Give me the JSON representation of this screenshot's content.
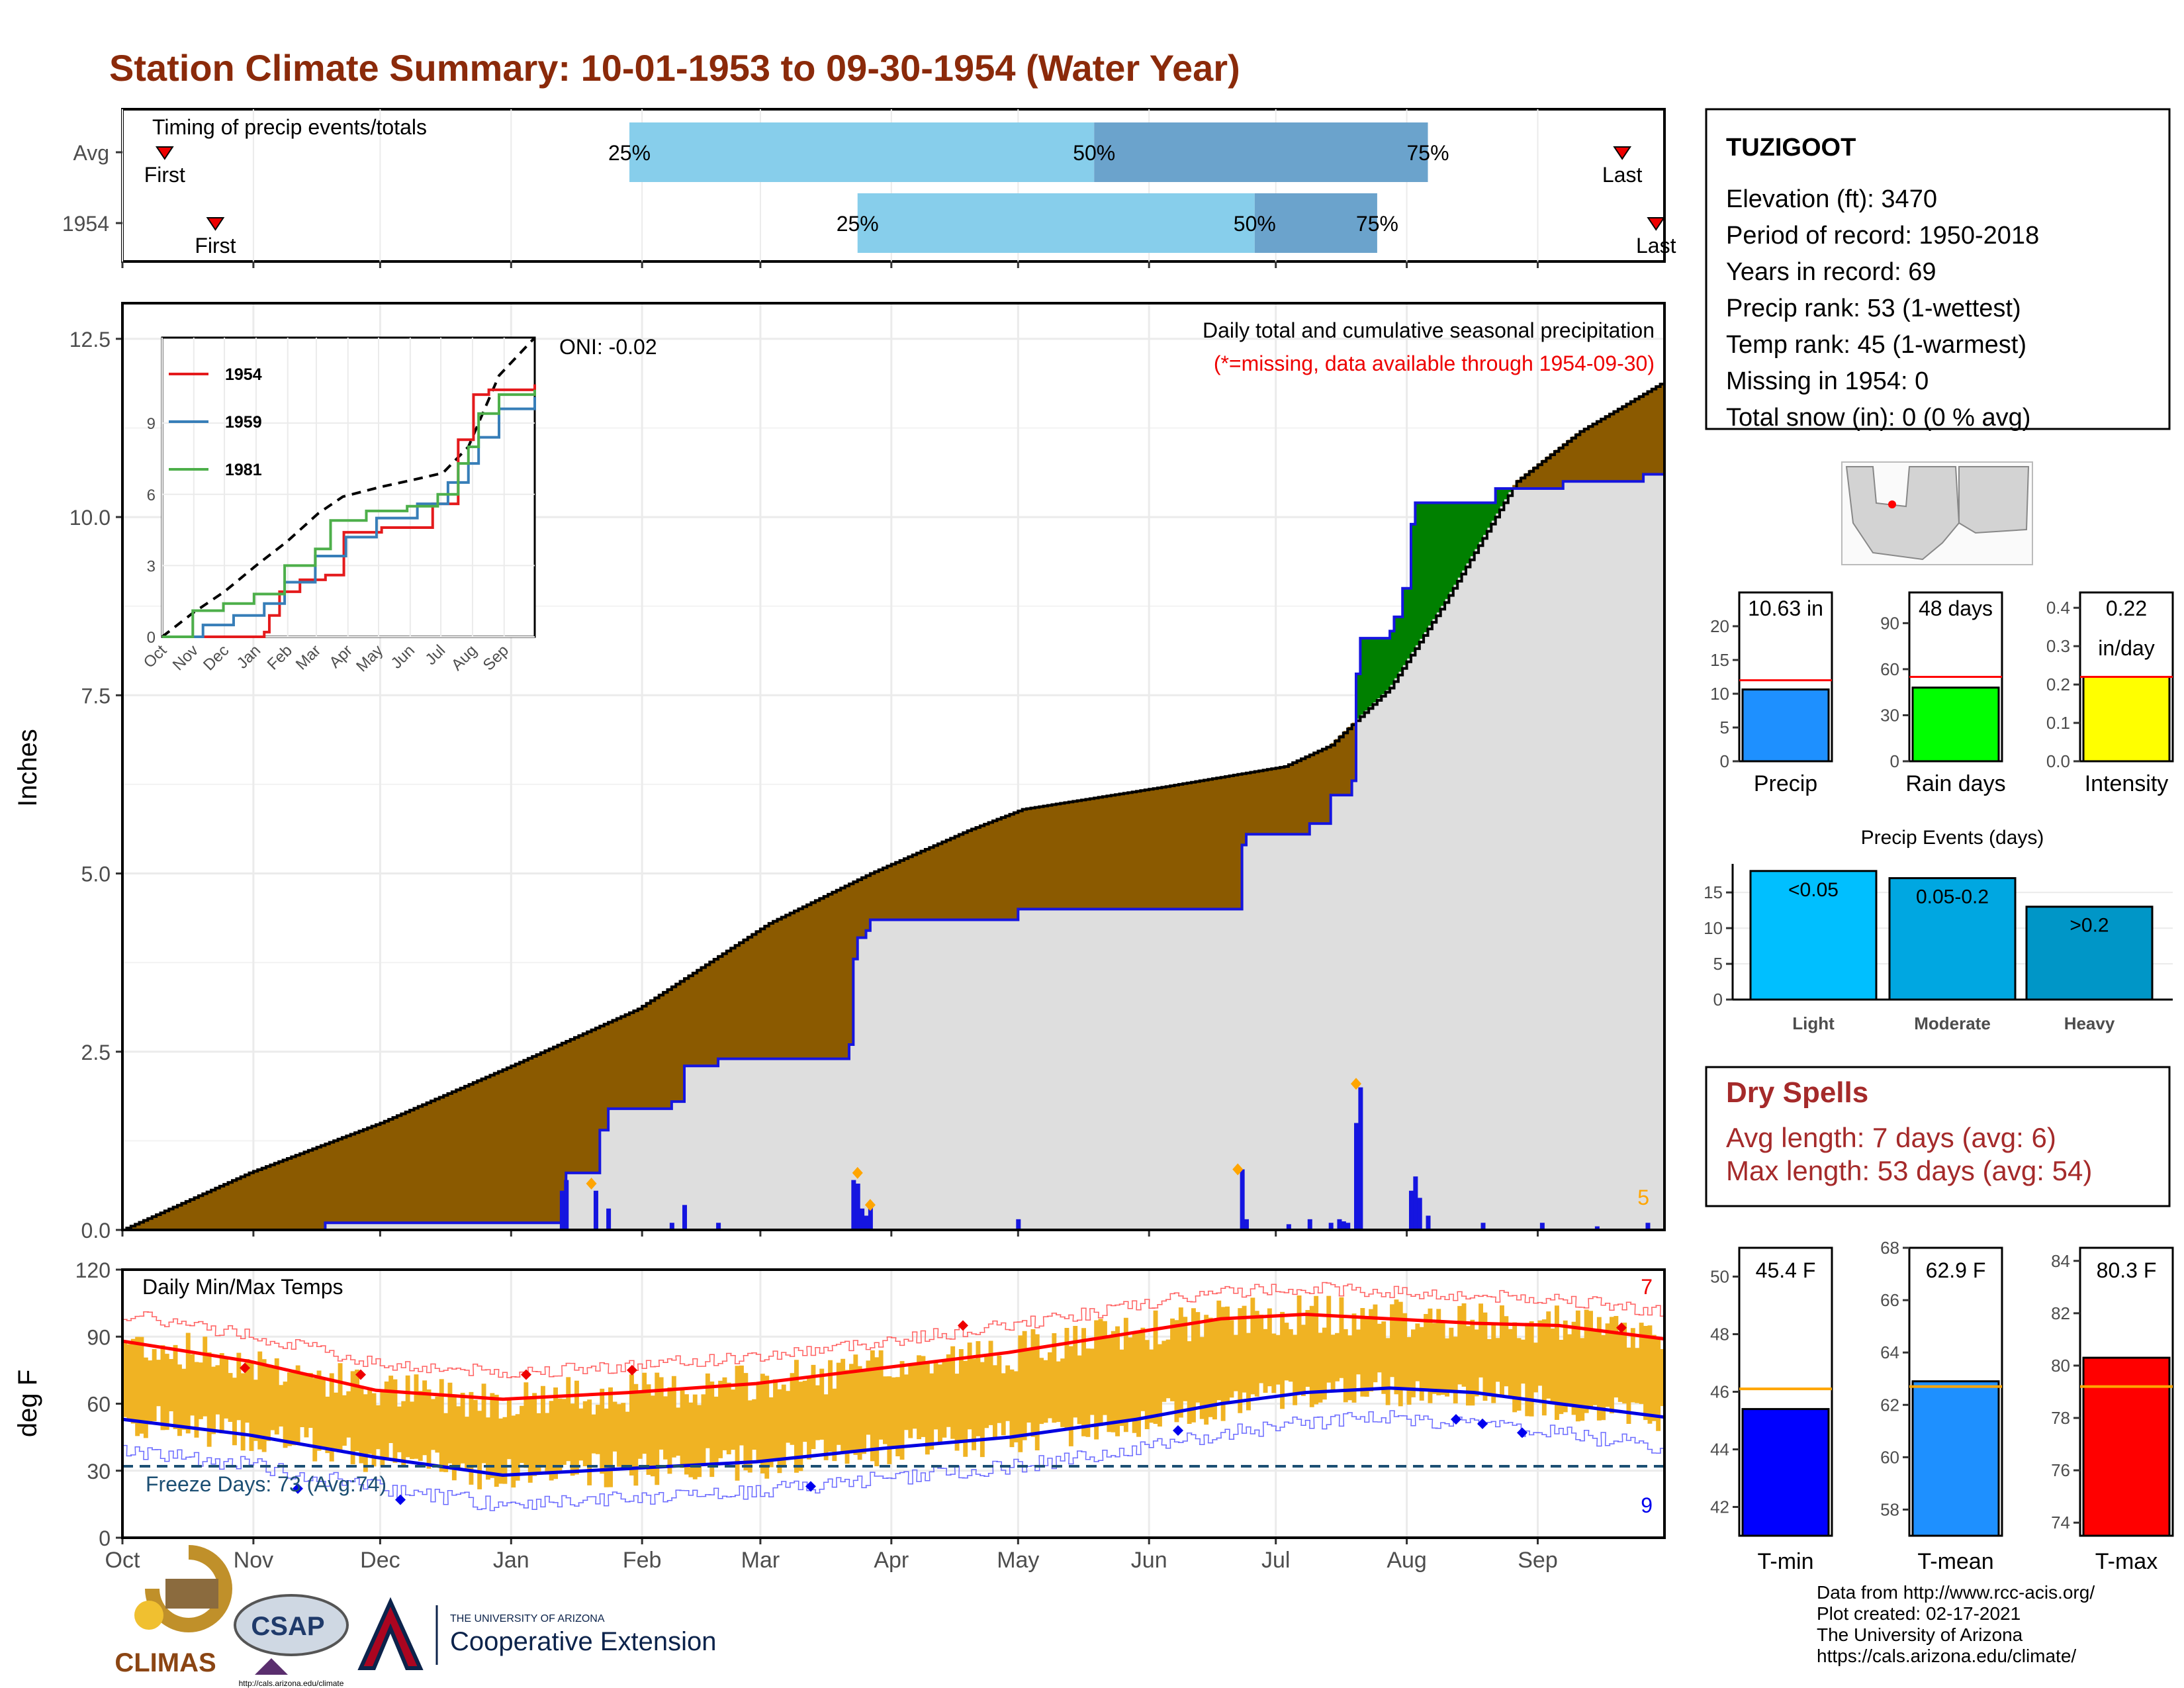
{
  "title": "Station Climate Summary: 10-01-1953 to 09-30-1954 (Water Year)",
  "timing": {
    "label": "Timing of precip events/totals",
    "rows": [
      {
        "name": "Avg",
        "first": "First",
        "last": "Last",
        "p25": "25%",
        "p50": "50%",
        "p75": "75%",
        "first_day": 10,
        "q25_day": 120,
        "q50_day": 230,
        "q75_day": 309,
        "last_day": 355
      },
      {
        "name": "1954",
        "first": "First",
        "last": "Last",
        "p25": "25%",
        "p50": "50%",
        "p75": "75%",
        "first_day": 22,
        "q25_day": 174,
        "q50_day": 268,
        "q75_day": 297,
        "last_day": 363
      }
    ]
  },
  "precip_panel": {
    "title": "Daily total and cumulative seasonal precipitation",
    "note": "(*=missing, data available through 1954-09-30)",
    "ylabel": "Inches",
    "yticks": [
      "0.0",
      "2.5",
      "5.0",
      "7.5",
      "10.0",
      "12.5"
    ],
    "oni": "ONI: -0.02",
    "max_label": "5",
    "avg_cum": [
      [
        0,
        0
      ],
      [
        30,
        0.8
      ],
      [
        61,
        1.5
      ],
      [
        92,
        2.3
      ],
      [
        122,
        3.1
      ],
      [
        153,
        4.3
      ],
      [
        177,
        5.0
      ],
      [
        200,
        5.6
      ],
      [
        213,
        5.9
      ],
      [
        245,
        6.2
      ],
      [
        275,
        6.5
      ],
      [
        286,
        6.8
      ],
      [
        300,
        7.6
      ],
      [
        313,
        8.8
      ],
      [
        330,
        10.5
      ],
      [
        345,
        11.2
      ],
      [
        365,
        11.9
      ]
    ],
    "obs_cum": [
      [
        0,
        0
      ],
      [
        47,
        0
      ],
      [
        48,
        0.1
      ],
      [
        104,
        0.1
      ],
      [
        105,
        0.8
      ],
      [
        112,
        0.8
      ],
      [
        113,
        1.4
      ],
      [
        115,
        1.7
      ],
      [
        129,
        1.7
      ],
      [
        130,
        1.8
      ],
      [
        132,
        1.8
      ],
      [
        133,
        2.3
      ],
      [
        140,
        2.3
      ],
      [
        141,
        2.4
      ],
      [
        170,
        2.4
      ],
      [
        172,
        2.6
      ],
      [
        173,
        3.8
      ],
      [
        174,
        4.1
      ],
      [
        176,
        4.2
      ],
      [
        177,
        4.35
      ],
      [
        211,
        4.35
      ],
      [
        212,
        4.5
      ],
      [
        264,
        4.5
      ],
      [
        265,
        5.4
      ],
      [
        266,
        5.55
      ],
      [
        280,
        5.55
      ],
      [
        281,
        5.7
      ],
      [
        284,
        5.7
      ],
      [
        286,
        6.1
      ],
      [
        291,
        6.3
      ],
      [
        292,
        7.8
      ],
      [
        293,
        8.3
      ],
      [
        300,
        8.4
      ],
      [
        301,
        8.6
      ],
      [
        303,
        9.0
      ],
      [
        305,
        9.9
      ],
      [
        306,
        10.2
      ],
      [
        320,
        10.2
      ],
      [
        325,
        10.4
      ],
      [
        340,
        10.4
      ],
      [
        341,
        10.5
      ],
      [
        360,
        10.6
      ],
      [
        365,
        10.63
      ]
    ],
    "daily": [
      [
        104,
        0.55
      ],
      [
        105,
        0.7
      ],
      [
        112,
        0.55
      ],
      [
        115,
        0.3
      ],
      [
        130,
        0.1
      ],
      [
        133,
        0.35
      ],
      [
        141,
        0.1
      ],
      [
        173,
        0.7
      ],
      [
        174,
        0.65
      ],
      [
        175,
        0.3
      ],
      [
        176,
        0.2
      ],
      [
        177,
        0.35
      ],
      [
        212,
        0.15
      ],
      [
        265,
        0.85
      ],
      [
        266,
        0.15
      ],
      [
        276,
        0.08
      ],
      [
        281,
        0.15
      ],
      [
        286,
        0.1
      ],
      [
        288,
        0.15
      ],
      [
        289,
        0.12
      ],
      [
        290,
        0.1
      ],
      [
        292,
        1.5
      ],
      [
        293,
        2.0
      ],
      [
        305,
        0.55
      ],
      [
        306,
        0.75
      ],
      [
        307,
        0.45
      ],
      [
        309,
        0.2
      ],
      [
        322,
        0.1
      ],
      [
        336,
        0.1
      ],
      [
        349,
        0.05
      ],
      [
        361,
        0.1
      ]
    ],
    "orange_marks": [
      [
        111,
        0.65
      ],
      [
        174,
        0.8
      ],
      [
        177,
        0.35
      ],
      [
        264,
        0.85
      ],
      [
        292,
        2.05
      ]
    ],
    "xlim": [
      0,
      365
    ],
    "ylim": [
      0,
      13.0
    ]
  },
  "inset": {
    "xticks": [
      "Oct",
      "Nov",
      "Dec",
      "Jan",
      "Feb",
      "Mar",
      "Apr",
      "May",
      "Jun",
      "Jul",
      "Aug",
      "Sep"
    ],
    "yticks": [
      "0",
      "3",
      "6",
      "9"
    ],
    "series": [
      {
        "name": "1954",
        "color": "#e41a1c",
        "points": [
          [
            0,
            0
          ],
          [
            100,
            0.2
          ],
          [
            105,
            0.9
          ],
          [
            115,
            1.9
          ],
          [
            135,
            2.4
          ],
          [
            160,
            2.6
          ],
          [
            178,
            4.4
          ],
          [
            215,
            4.6
          ],
          [
            265,
            5.6
          ],
          [
            290,
            8.3
          ],
          [
            305,
            10.2
          ],
          [
            320,
            10.4
          ],
          [
            365,
            10.63
          ]
        ]
      },
      {
        "name": "1959",
        "color": "#377eb8",
        "points": [
          [
            0,
            0
          ],
          [
            40,
            0.5
          ],
          [
            70,
            0.9
          ],
          [
            100,
            1.4
          ],
          [
            120,
            2.3
          ],
          [
            150,
            3.4
          ],
          [
            180,
            4.2
          ],
          [
            210,
            5.0
          ],
          [
            250,
            5.6
          ],
          [
            280,
            6.5
          ],
          [
            300,
            7.3
          ],
          [
            310,
            8.4
          ],
          [
            330,
            9.6
          ],
          [
            365,
            10.1
          ]
        ]
      },
      {
        "name": "1981",
        "color": "#4daf4a",
        "points": [
          [
            0,
            0
          ],
          [
            30,
            1.1
          ],
          [
            60,
            1.4
          ],
          [
            90,
            1.8
          ],
          [
            120,
            3.0
          ],
          [
            150,
            3.7
          ],
          [
            165,
            4.9
          ],
          [
            200,
            5.3
          ],
          [
            240,
            5.5
          ],
          [
            270,
            6.0
          ],
          [
            290,
            7.3
          ],
          [
            300,
            8.0
          ],
          [
            310,
            9.4
          ],
          [
            330,
            10.2
          ],
          [
            365,
            10.4
          ]
        ]
      }
    ],
    "avg_dashed": [
      [
        0,
        0
      ],
      [
        30,
        1.0
      ],
      [
        61,
        1.9
      ],
      [
        92,
        3.0
      ],
      [
        122,
        4.0
      ],
      [
        153,
        5.2
      ],
      [
        177,
        5.9
      ],
      [
        213,
        6.3
      ],
      [
        245,
        6.6
      ],
      [
        275,
        6.9
      ],
      [
        300,
        8.0
      ],
      [
        330,
        11.0
      ],
      [
        365,
        12.6
      ]
    ],
    "ylim": [
      0,
      12.6
    ]
  },
  "temp_panel": {
    "title": "Daily Min/Max Temps",
    "ylabel": "deg F",
    "yticks": [
      "0",
      "30",
      "60",
      "90",
      "120"
    ],
    "freeze": "Freeze Days: 73 (Avg:74)",
    "hot_count": "7",
    "cold_count": "9",
    "freeze_line": 32,
    "tmax_avg": [
      [
        0,
        88
      ],
      [
        30,
        79
      ],
      [
        60,
        66
      ],
      [
        90,
        62
      ],
      [
        120,
        65
      ],
      [
        150,
        69
      ],
      [
        180,
        76
      ],
      [
        210,
        83
      ],
      [
        240,
        92
      ],
      [
        260,
        98
      ],
      [
        280,
        100
      ],
      [
        300,
        98
      ],
      [
        320,
        96
      ],
      [
        340,
        95
      ],
      [
        365,
        89
      ]
    ],
    "tmin_avg": [
      [
        0,
        53
      ],
      [
        30,
        46
      ],
      [
        60,
        36
      ],
      [
        90,
        28
      ],
      [
        120,
        31
      ],
      [
        150,
        34
      ],
      [
        180,
        40
      ],
      [
        210,
        45
      ],
      [
        240,
        53
      ],
      [
        260,
        60
      ],
      [
        280,
        65
      ],
      [
        300,
        67
      ],
      [
        320,
        65
      ],
      [
        340,
        60
      ],
      [
        365,
        54
      ]
    ],
    "xlim": [
      0,
      365
    ],
    "ylim": [
      0,
      120
    ]
  },
  "months": [
    "Oct",
    "Nov",
    "Dec",
    "Jan",
    "Feb",
    "Mar",
    "Apr",
    "May",
    "Jun",
    "Jul",
    "Aug",
    "Sep"
  ],
  "month_starts": [
    0,
    31,
    61,
    92,
    123,
    151,
    182,
    212,
    243,
    273,
    304,
    335
  ],
  "station": {
    "name": "TUZIGOOT",
    "lines": [
      "Elevation (ft): 3470",
      "Period of record: 1950-2018",
      "Years in record: 69",
      "Precip rank: 53 (1-wettest)",
      "Temp rank: 45 (1-warmest)",
      "Missing in 1954: 0",
      "Total snow (in): 0 (0 % avg)"
    ]
  },
  "mini_bars": [
    {
      "label": "Precip",
      "value_text": "10.63 in",
      "value": 10.63,
      "avg": 12.0,
      "max": 25,
      "ticks": [
        "0",
        "5",
        "10",
        "15",
        "20"
      ],
      "tickvals": [
        0,
        5,
        10,
        15,
        20
      ],
      "color": "#1e90ff"
    },
    {
      "label": "Rain days",
      "value_text": "48 days",
      "value": 48,
      "avg": 55,
      "max": 110,
      "ticks": [
        "0",
        "30",
        "60",
        "90"
      ],
      "tickvals": [
        0,
        30,
        60,
        90
      ],
      "color": "#00ff00"
    },
    {
      "label": "Intensity",
      "value_text": "0.22",
      "value_text2": "in/day",
      "value": 0.22,
      "avg": 0.22,
      "max": 0.44,
      "ticks": [
        "0.0",
        "0.1",
        "0.2",
        "0.3",
        "0.4"
      ],
      "tickvals": [
        0,
        0.1,
        0.2,
        0.3,
        0.4
      ],
      "color": "#ffff00"
    }
  ],
  "precip_events": {
    "title": "Precip Events (days)",
    "categories": [
      "Light",
      "Moderate",
      "Heavy"
    ],
    "values": [
      18,
      17,
      13
    ],
    "labels": [
      "<0.05",
      "0.05-0.2",
      ">0.2"
    ],
    "colors": [
      "#00bfff",
      "#00a7e1",
      "#0096c7"
    ],
    "yticks": [
      "0",
      "5",
      "10",
      "15"
    ],
    "ylim": [
      0,
      19
    ]
  },
  "dry_spells": {
    "title": "Dry Spells",
    "avg": "Avg length: 7 days (avg: 6)",
    "max": "Max length: 53 days (avg: 54)"
  },
  "temp_bars": [
    {
      "label": "T-min",
      "value_text": "45.4 F",
      "value": 45.4,
      "avg": 46.1,
      "ylim": [
        41,
        51
      ],
      "ticks": [
        "42",
        "44",
        "46",
        "48",
        "50"
      ],
      "tickvals": [
        42,
        44,
        46,
        48,
        50
      ],
      "color": "#0000ff"
    },
    {
      "label": "T-mean",
      "value_text": "62.9 F",
      "value": 62.9,
      "avg": 62.7,
      "ylim": [
        57,
        68
      ],
      "ticks": [
        "58",
        "60",
        "62",
        "64",
        "66",
        "68"
      ],
      "tickvals": [
        58,
        60,
        62,
        64,
        66,
        68
      ],
      "color": "#1e90ff"
    },
    {
      "label": "T-max",
      "value_text": "80.3 F",
      "value": 80.3,
      "avg": 79.2,
      "ylim": [
        73.5,
        84.5
      ],
      "ticks": [
        "74",
        "76",
        "78",
        "80",
        "82",
        "84"
      ],
      "tickvals": [
        74,
        76,
        78,
        80,
        82,
        84
      ],
      "color": "#ff0000"
    }
  ],
  "credits": [
    "Data from http://www.rcc-acis.org/",
    "Plot created: 02-17-2021",
    "The University of Arizona",
    "https://cals.arizona.edu/climate/"
  ],
  "logos": {
    "climas": "CLIMAS",
    "csap": "CSAP",
    "csap_url": "http://cals.arizona.edu/climate",
    "ua_small": "THE UNIVERSITY OF ARIZONA",
    "ua_big": "Cooperative Extension"
  }
}
